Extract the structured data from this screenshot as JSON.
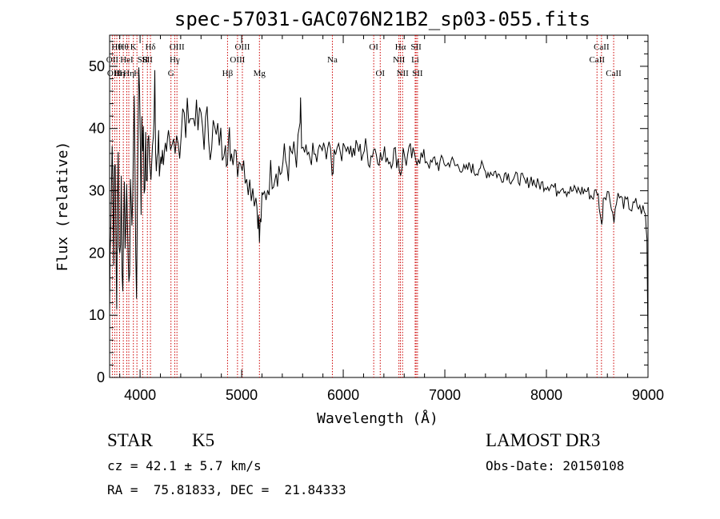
{
  "chart_data": {
    "type": "line",
    "title": "spec-57031-GAC076N21B2_sp03-055.fits",
    "xlabel": "Wavelength (Å)",
    "ylabel": "Flux (relative)",
    "xlim": [
      3700,
      9000
    ],
    "ylim": [
      0,
      55
    ],
    "xticks": [
      4000,
      5000,
      6000,
      7000,
      8000,
      9000
    ],
    "yticks": [
      0,
      10,
      20,
      30,
      40,
      50
    ],
    "grid": false,
    "series": [
      {
        "name": "flux",
        "points": [
          [
            3700,
            10
          ],
          [
            3710,
            28
          ],
          [
            3725,
            38
          ],
          [
            3740,
            24
          ],
          [
            3755,
            33
          ],
          [
            3770,
            14
          ],
          [
            3785,
            34
          ],
          [
            3800,
            20
          ],
          [
            3815,
            30
          ],
          [
            3830,
            13
          ],
          [
            3845,
            36
          ],
          [
            3860,
            18
          ],
          [
            3875,
            31
          ],
          [
            3890,
            9
          ],
          [
            3905,
            33
          ],
          [
            3920,
            22
          ],
          [
            3935,
            42
          ],
          [
            3950,
            35
          ],
          [
            3965,
            12
          ],
          [
            3980,
            44
          ],
          [
            3995,
            48
          ],
          [
            4010,
            32
          ],
          [
            4025,
            40
          ],
          [
            4040,
            30
          ],
          [
            4055,
            38
          ],
          [
            4070,
            28
          ],
          [
            4085,
            44
          ],
          [
            4100,
            34
          ],
          [
            4115,
            41
          ],
          [
            4130,
            36
          ],
          [
            4145,
            43
          ],
          [
            4160,
            34
          ],
          [
            4175,
            37
          ],
          [
            4190,
            33
          ],
          [
            4205,
            37
          ],
          [
            4220,
            35
          ],
          [
            4240,
            38
          ],
          [
            4260,
            34
          ],
          [
            4280,
            37
          ],
          [
            4300,
            35
          ],
          [
            4330,
            38
          ],
          [
            4360,
            40
          ],
          [
            4390,
            37
          ],
          [
            4420,
            42
          ],
          [
            4450,
            40
          ],
          [
            4480,
            44
          ],
          [
            4510,
            41
          ],
          [
            4540,
            43
          ],
          [
            4570,
            40
          ],
          [
            4600,
            42
          ],
          [
            4630,
            39
          ],
          [
            4660,
            41
          ],
          [
            4690,
            38
          ],
          [
            4720,
            40
          ],
          [
            4750,
            38
          ],
          [
            4780,
            39
          ],
          [
            4810,
            37
          ],
          [
            4840,
            40
          ],
          [
            4860,
            34
          ],
          [
            4880,
            38
          ],
          [
            4900,
            36
          ],
          [
            4930,
            38
          ],
          [
            4960,
            35
          ],
          [
            4990,
            36
          ],
          [
            5020,
            33
          ],
          [
            5050,
            34
          ],
          [
            5080,
            31
          ],
          [
            5110,
            31
          ],
          [
            5140,
            29
          ],
          [
            5160,
            27
          ],
          [
            5175,
            22
          ],
          [
            5190,
            26
          ],
          [
            5210,
            28
          ],
          [
            5240,
            30
          ],
          [
            5270,
            32
          ],
          [
            5300,
            33
          ],
          [
            5340,
            34
          ],
          [
            5380,
            33
          ],
          [
            5420,
            35
          ],
          [
            5460,
            34
          ],
          [
            5500,
            36
          ],
          [
            5540,
            34
          ],
          [
            5570,
            38
          ],
          [
            5580,
            45
          ],
          [
            5590,
            35
          ],
          [
            5620,
            36
          ],
          [
            5660,
            35
          ],
          [
            5700,
            36
          ],
          [
            5740,
            35
          ],
          [
            5780,
            37
          ],
          [
            5820,
            36
          ],
          [
            5860,
            38
          ],
          [
            5890,
            32
          ],
          [
            5910,
            36
          ],
          [
            5940,
            38
          ],
          [
            5970,
            37
          ],
          [
            6000,
            36
          ],
          [
            6030,
            38
          ],
          [
            6060,
            37
          ],
          [
            6100,
            36
          ],
          [
            6140,
            37
          ],
          [
            6180,
            36
          ],
          [
            6220,
            37
          ],
          [
            6260,
            35
          ],
          [
            6300,
            37
          ],
          [
            6340,
            36
          ],
          [
            6380,
            35
          ],
          [
            6420,
            36
          ],
          [
            6460,
            35
          ],
          [
            6500,
            36
          ],
          [
            6540,
            35
          ],
          [
            6565,
            33
          ],
          [
            6590,
            36
          ],
          [
            6620,
            35
          ],
          [
            6660,
            36
          ],
          [
            6700,
            35
          ],
          [
            6740,
            36
          ],
          [
            6780,
            35
          ],
          [
            6820,
            35
          ],
          [
            6860,
            34
          ],
          [
            6900,
            35
          ],
          [
            6940,
            34
          ],
          [
            6980,
            35
          ],
          [
            7020,
            34
          ],
          [
            7060,
            35
          ],
          [
            7100,
            34
          ],
          [
            7150,
            34
          ],
          [
            7200,
            33
          ],
          [
            7250,
            34
          ],
          [
            7300,
            33
          ],
          [
            7350,
            34
          ],
          [
            7400,
            33
          ],
          [
            7450,
            33
          ],
          [
            7500,
            33
          ],
          [
            7550,
            32
          ],
          [
            7600,
            33
          ],
          [
            7650,
            32
          ],
          [
            7700,
            32
          ],
          [
            7750,
            32
          ],
          [
            7800,
            31
          ],
          [
            7850,
            32
          ],
          [
            7900,
            31
          ],
          [
            7950,
            31
          ],
          [
            8000,
            31
          ],
          [
            8050,
            31
          ],
          [
            8100,
            30
          ],
          [
            8150,
            31
          ],
          [
            8200,
            30
          ],
          [
            8250,
            30
          ],
          [
            8300,
            30
          ],
          [
            8350,
            30
          ],
          [
            8400,
            30
          ],
          [
            8450,
            29
          ],
          [
            8500,
            30
          ],
          [
            8520,
            28
          ],
          [
            8545,
            24
          ],
          [
            8560,
            29
          ],
          [
            8600,
            30
          ],
          [
            8640,
            28
          ],
          [
            8665,
            25
          ],
          [
            8690,
            29
          ],
          [
            8720,
            29
          ],
          [
            8760,
            28
          ],
          [
            8800,
            28
          ],
          [
            8840,
            27
          ],
          [
            8880,
            28
          ],
          [
            8920,
            27
          ],
          [
            8950,
            27
          ],
          [
            8975,
            26
          ],
          [
            8990,
            22
          ],
          [
            9000,
            5
          ]
        ]
      }
    ],
    "line_markers": [
      {
        "wl": 3727,
        "label": "OII",
        "row": 2
      },
      {
        "wl": 3750,
        "label": "OIII",
        "row": 3
      },
      {
        "wl": 3771,
        "label": "Hθ",
        "row": 1
      },
      {
        "wl": 3798,
        "label": "Hη",
        "row": 3
      },
      {
        "wl": 3835,
        "label": "Hθ",
        "row": 1
      },
      {
        "wl": 3869,
        "label": "HeI",
        "row": 2
      },
      {
        "wl": 3889,
        "label": "Hη",
        "row": 3
      },
      {
        "wl": 3934,
        "label": "K",
        "row": 1
      },
      {
        "wl": 3969,
        "label": "H",
        "row": 3
      },
      {
        "wl": 4026,
        "label": "SII",
        "row": 2
      },
      {
        "wl": 4072,
        "label": "SII",
        "row": 2
      },
      {
        "wl": 4102,
        "label": "Hδ",
        "row": 1
      },
      {
        "wl": 4304,
        "label": "G",
        "row": 3
      },
      {
        "wl": 4341,
        "label": "Hγ",
        "row": 2
      },
      {
        "wl": 4363,
        "label": "OIII",
        "row": 1
      },
      {
        "wl": 4861,
        "label": "Hβ",
        "row": 3
      },
      {
        "wl": 4959,
        "label": "OIII",
        "row": 2
      },
      {
        "wl": 5007,
        "label": "OIII",
        "row": 1
      },
      {
        "wl": 5175,
        "label": "Mg",
        "row": 3
      },
      {
        "wl": 5893,
        "label": "Na",
        "row": 2
      },
      {
        "wl": 6300,
        "label": "OI",
        "row": 1
      },
      {
        "wl": 6364,
        "label": "OI",
        "row": 3
      },
      {
        "wl": 6548,
        "label": "NII",
        "row": 2
      },
      {
        "wl": 6563,
        "label": "Hα",
        "row": 1
      },
      {
        "wl": 6584,
        "label": "NII",
        "row": 3
      },
      {
        "wl": 6708,
        "label": "Li",
        "row": 2
      },
      {
        "wl": 6717,
        "label": "SII",
        "row": 1
      },
      {
        "wl": 6731,
        "label": "SII",
        "row": 3
      },
      {
        "wl": 8498,
        "label": "CaII",
        "row": 2
      },
      {
        "wl": 8542,
        "label": "CaII",
        "row": 1
      },
      {
        "wl": 8662,
        "label": "CaII",
        "row": 3
      }
    ]
  },
  "info": {
    "object_class": "STAR",
    "subclass": "K5",
    "survey": "LAMOST DR3",
    "cz": "cz = 42.1 ± 5.7 km/s",
    "obs_date": "Obs-Date: 20150108",
    "coords": "RA =  75.81833, DEC =  21.84333"
  },
  "colors": {
    "line": "#000000",
    "marker": "#cc0000",
    "text": "#000000"
  }
}
